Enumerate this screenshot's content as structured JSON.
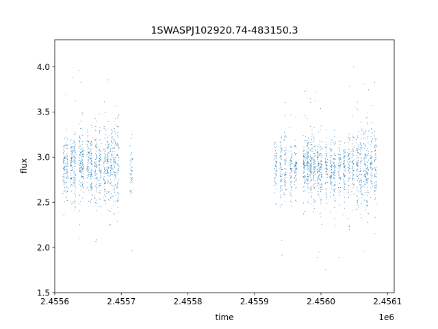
{
  "chart_data": {
    "type": "scatter",
    "title": "1SWASPJ102920.74-483150.3",
    "xlabel": "time",
    "ylabel": "flux",
    "x_offset_label": "1e6",
    "xlim": [
      2.4556,
      2.45611
    ],
    "ylim": [
      1.5,
      4.3
    ],
    "x_ticks": [
      2.4556,
      2.4557,
      2.4558,
      2.4559,
      2.456,
      2.4561
    ],
    "x_tick_labels": [
      "2.4556",
      "2.4557",
      "2.4558",
      "2.4559",
      "2.4560",
      "2.4561"
    ],
    "y_ticks": [
      1.5,
      2.0,
      2.5,
      3.0,
      3.5,
      4.0
    ],
    "y_tick_labels": [
      "1.5",
      "2.0",
      "2.5",
      "3.0",
      "3.5",
      "4.0"
    ],
    "grid": false,
    "marker_color": "#1f77b4",
    "observing_nights": [
      {
        "x": 2.455614,
        "y": 2.9,
        "spread": 0.15,
        "n": 55
      },
      {
        "x": 2.455618,
        "y": 2.88,
        "spread": 0.17,
        "n": 60
      },
      {
        "x": 2.455625,
        "y": 2.92,
        "spread": 0.18,
        "n": 65
      },
      {
        "x": 2.45563,
        "y": 2.9,
        "spread": 0.19,
        "n": 70
      },
      {
        "x": 2.455638,
        "y": 2.93,
        "spread": 0.2,
        "n": 60
      },
      {
        "x": 2.455642,
        "y": 2.88,
        "spread": 0.18,
        "n": 65
      },
      {
        "x": 2.45565,
        "y": 2.92,
        "spread": 0.17,
        "n": 60
      },
      {
        "x": 2.455655,
        "y": 2.9,
        "spread": 0.18,
        "n": 70
      },
      {
        "x": 2.455662,
        "y": 2.89,
        "spread": 0.2,
        "n": 75
      },
      {
        "x": 2.455668,
        "y": 2.91,
        "spread": 0.22,
        "n": 65
      },
      {
        "x": 2.455675,
        "y": 2.88,
        "spread": 0.2,
        "n": 60
      },
      {
        "x": 2.45568,
        "y": 2.87,
        "spread": 0.24,
        "n": 70
      },
      {
        "x": 2.455685,
        "y": 2.9,
        "spread": 0.23,
        "n": 60
      },
      {
        "x": 2.45569,
        "y": 2.85,
        "spread": 0.3,
        "n": 65
      },
      {
        "x": 2.455695,
        "y": 2.92,
        "spread": 0.25,
        "n": 55
      },
      {
        "x": 2.455715,
        "y": 2.88,
        "spread": 0.15,
        "n": 40
      },
      {
        "x": 2.455932,
        "y": 2.85,
        "spread": 0.18,
        "n": 55
      },
      {
        "x": 2.45594,
        "y": 2.88,
        "spread": 0.2,
        "n": 60
      },
      {
        "x": 2.455946,
        "y": 2.86,
        "spread": 0.22,
        "n": 55
      },
      {
        "x": 2.455955,
        "y": 2.9,
        "spread": 0.17,
        "n": 60
      },
      {
        "x": 2.455962,
        "y": 2.88,
        "spread": 0.15,
        "n": 55
      },
      {
        "x": 2.455975,
        "y": 2.88,
        "spread": 0.18,
        "n": 70
      },
      {
        "x": 2.45598,
        "y": 2.9,
        "spread": 0.16,
        "n": 80
      },
      {
        "x": 2.455985,
        "y": 2.88,
        "spread": 0.17,
        "n": 75
      },
      {
        "x": 2.45599,
        "y": 2.86,
        "spread": 0.18,
        "n": 70
      },
      {
        "x": 2.455996,
        "y": 2.88,
        "spread": 0.16,
        "n": 65
      },
      {
        "x": 2.456,
        "y": 2.85,
        "spread": 0.18,
        "n": 70
      },
      {
        "x": 2.456008,
        "y": 2.9,
        "spread": 0.16,
        "n": 60
      },
      {
        "x": 2.456015,
        "y": 2.88,
        "spread": 0.18,
        "n": 60
      },
      {
        "x": 2.45602,
        "y": 2.86,
        "spread": 0.2,
        "n": 65
      },
      {
        "x": 2.456028,
        "y": 2.9,
        "spread": 0.18,
        "n": 55
      },
      {
        "x": 2.456035,
        "y": 2.88,
        "spread": 0.16,
        "n": 60
      },
      {
        "x": 2.456042,
        "y": 2.88,
        "spread": 0.2,
        "n": 60
      },
      {
        "x": 2.456048,
        "y": 2.86,
        "spread": 0.18,
        "n": 55
      },
      {
        "x": 2.456055,
        "y": 2.9,
        "spread": 0.22,
        "n": 65
      },
      {
        "x": 2.45606,
        "y": 2.88,
        "spread": 0.24,
        "n": 60
      },
      {
        "x": 2.456066,
        "y": 2.9,
        "spread": 0.2,
        "n": 55
      },
      {
        "x": 2.45607,
        "y": 2.84,
        "spread": 0.25,
        "n": 60
      },
      {
        "x": 2.456076,
        "y": 2.86,
        "spread": 0.22,
        "n": 55
      },
      {
        "x": 2.456082,
        "y": 2.85,
        "spread": 0.26,
        "n": 60
      }
    ]
  }
}
